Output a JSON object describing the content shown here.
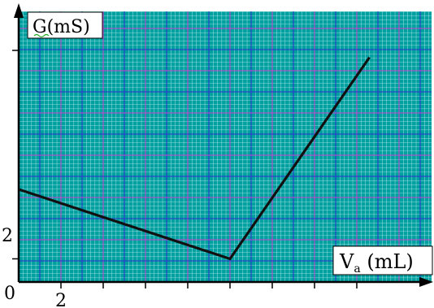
{
  "chart_data": {
    "type": "line",
    "ylabel": "G(mS)",
    "xlabel_main": "V",
    "xlabel_sub": "a",
    "xlabel_unit": " (mL)",
    "origin_label": "0",
    "x_tick_labels": [
      "2"
    ],
    "y_tick_labels": [
      "2"
    ],
    "x_ticks": [
      2,
      4,
      6,
      8,
      10,
      12,
      14,
      16
    ],
    "x": [
      0,
      10,
      16.6
    ],
    "y": [
      8,
      2,
      19.4
    ],
    "xlim": [
      0,
      19.4
    ],
    "ylim": [
      0,
      20.4
    ],
    "grid": true,
    "colors": {
      "grid_fill": "#00a0a0",
      "grid_fine": "#c8f0f0",
      "grid_major_blue": "#3030d0",
      "grid_major_magenta": "#d040d0",
      "line": "#111111",
      "axis": "#000000"
    }
  }
}
